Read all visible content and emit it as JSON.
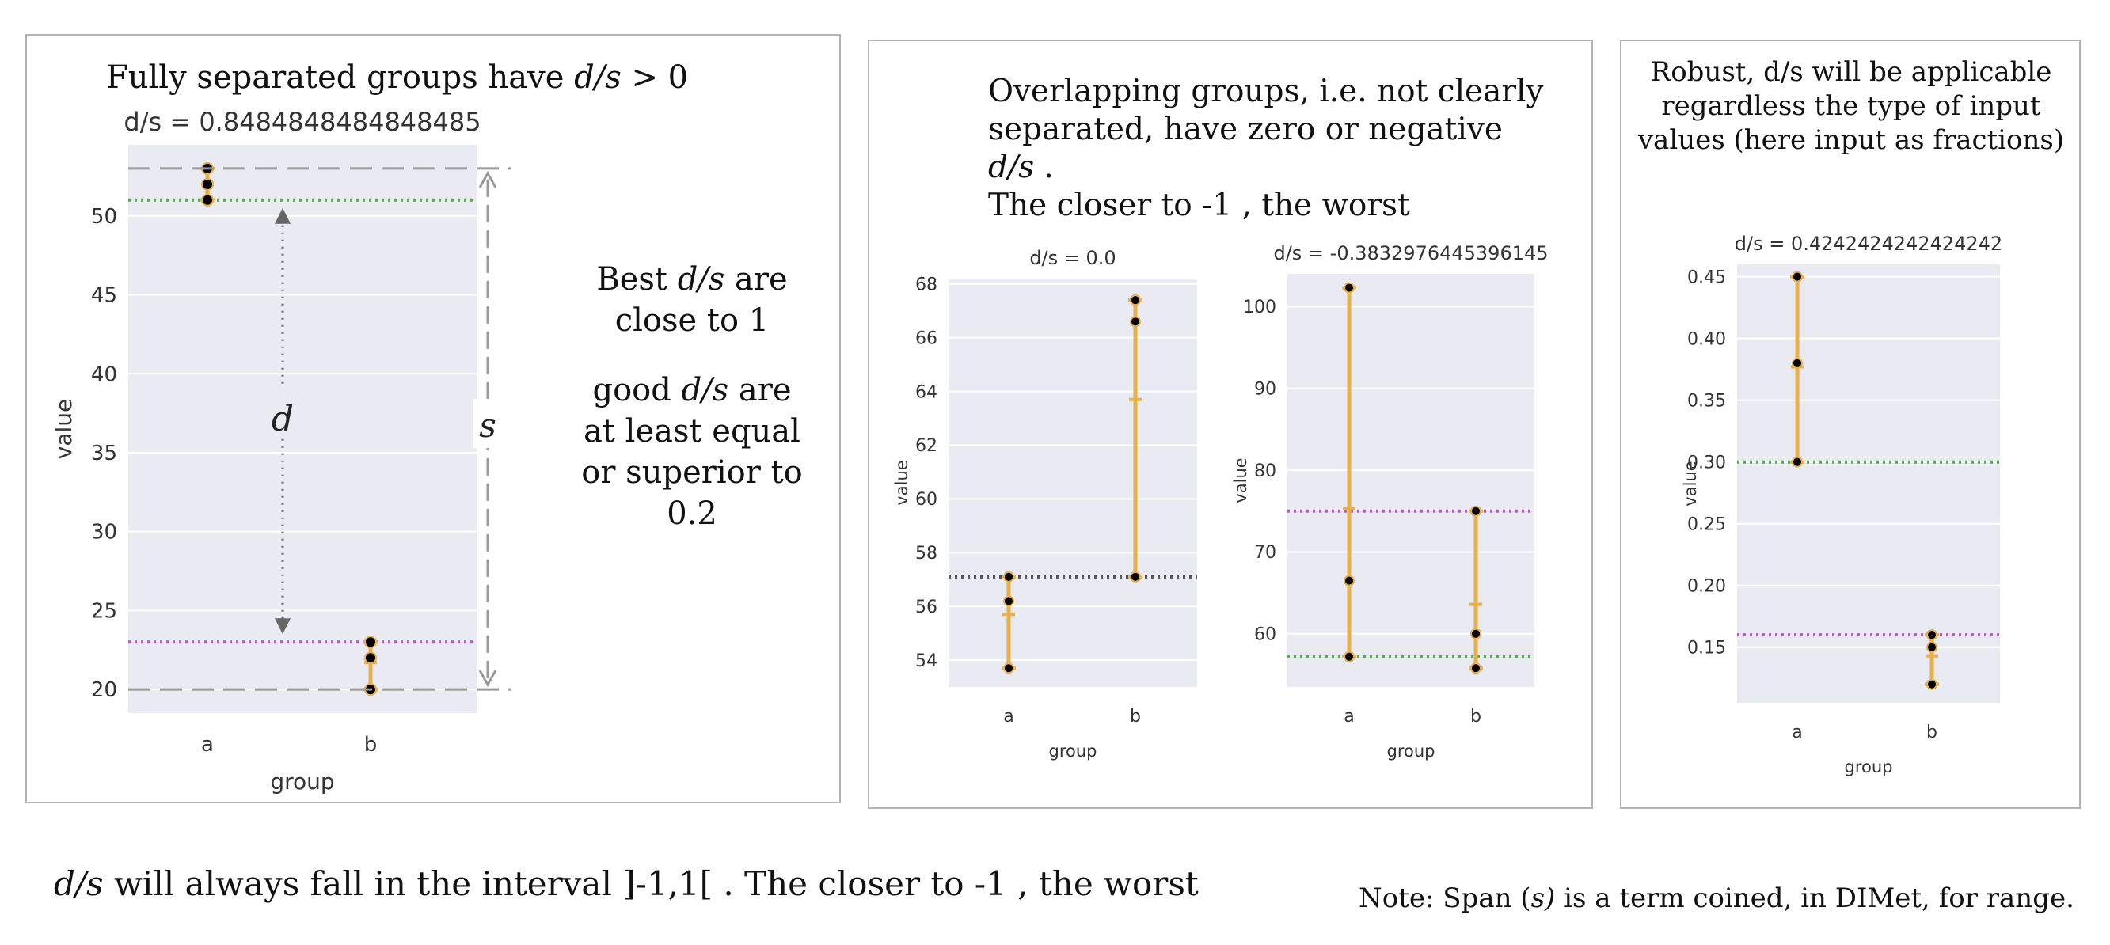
{
  "panel1": {
    "heading_prefix": "Fully separated groups have ",
    "heading_var": "d/s",
    "heading_suffix": " > 0",
    "note_line1_var": "Best ",
    "note_best_var": "d/s",
    "note_best_suffix": " are close  to 1",
    "note_good_prefix": "good ",
    "note_good_var": "d/s",
    "note_good_suffix": " are at least equal or superior to 0.2",
    "label_d": "d",
    "label_s": "s"
  },
  "panel2": {
    "heading_line1": "Overlapping groups, i.e. not clearly",
    "heading_line2_prefix": "separated, have zero or negative ",
    "heading_line2_var": "d/s",
    "heading_line2_suffix": " .",
    "heading_line3": "The closer to -1 , the worst"
  },
  "panel3": {
    "heading": "Robust,  d/s will be applicable regardless the type of input values  (here input as fractions)"
  },
  "bottom": {
    "left_var": "d/s",
    "left_text": " will always fall in the interval ]-1,1[ .   The closer to -1 , the worst",
    "right_prefix": "Note: Span (",
    "right_var": "s)",
    "right_suffix": " is a term coined, in DIMet, for range."
  },
  "colors": {
    "plot_bg": "#eaeaf2",
    "grid": "#ffffff",
    "errorbar": "#e8b04a",
    "point": "#000000",
    "green_line": "#5aa55a",
    "purple_line": "#b05cc0",
    "overlap_line": "#555555",
    "arrow": "#888888"
  },
  "chart_data": [
    {
      "type": "scatter",
      "title": "d/s = 0.8484848484848485",
      "xlabel": "group",
      "ylabel": "value",
      "categories": [
        "a",
        "b"
      ],
      "ylim": [
        18.5,
        54.5
      ],
      "yticks": [
        20,
        25,
        30,
        35,
        40,
        45,
        50
      ],
      "points": {
        "a": [
          53,
          52,
          51
        ],
        "b": [
          23,
          22,
          20
        ]
      },
      "errorbars": {
        "a": [
          51,
          53
        ],
        "b": [
          20,
          23
        ]
      },
      "means": {
        "a": 52,
        "b": 21.7
      },
      "hlines": [
        {
          "y": 51,
          "color": "green"
        },
        {
          "y": 23,
          "color": "purple"
        }
      ],
      "span_lines": [
        53,
        20
      ],
      "grid": true
    },
    {
      "type": "scatter",
      "title": "d/s = 0.0",
      "xlabel": "group",
      "ylabel": "value",
      "categories": [
        "a",
        "b"
      ],
      "ylim": [
        53.0,
        68.2
      ],
      "yticks": [
        54,
        56,
        58,
        60,
        62,
        64,
        66,
        68
      ],
      "points": {
        "a": [
          57.1,
          56.2,
          53.7
        ],
        "b": [
          67.4,
          66.6,
          57.1
        ]
      },
      "errorbars": {
        "a": [
          53.7,
          57.1
        ],
        "b": [
          57.1,
          67.4
        ]
      },
      "means": {
        "a": 55.7,
        "b": 63.7
      },
      "hlines": [
        {
          "y": 57.1,
          "color": "overlap"
        }
      ],
      "grid": true
    },
    {
      "type": "scatter",
      "title": "d/s = -0.3832976445396145",
      "xlabel": "group",
      "ylabel": "value",
      "categories": [
        "a",
        "b"
      ],
      "ylim": [
        53.5,
        104
      ],
      "yticks": [
        60,
        70,
        80,
        90,
        100
      ],
      "points": {
        "a": [
          102.3,
          66.5,
          57.2
        ],
        "b": [
          75.0,
          60.0,
          55.8
        ]
      },
      "errorbars": {
        "a": [
          57.2,
          102.3
        ],
        "b": [
          55.8,
          75.0
        ]
      },
      "means": {
        "a": 75.3,
        "b": 63.6
      },
      "hlines": [
        {
          "y": 75.0,
          "color": "purple"
        },
        {
          "y": 57.2,
          "color": "green"
        }
      ],
      "grid": true
    },
    {
      "type": "scatter",
      "title": "d/s = 0.4242424242424242",
      "xlabel": "group",
      "ylabel": "value",
      "categories": [
        "a",
        "b"
      ],
      "ylim": [
        0.105,
        0.46
      ],
      "yticks": [
        0.15,
        0.2,
        0.25,
        0.3,
        0.35,
        0.4,
        0.45
      ],
      "points": {
        "a": [
          0.45,
          0.38,
          0.3
        ],
        "b": [
          0.16,
          0.15,
          0.12
        ]
      },
      "errorbars": {
        "a": [
          0.3,
          0.45
        ],
        "b": [
          0.12,
          0.16
        ]
      },
      "means": {
        "a": 0.377,
        "b": 0.143
      },
      "hlines": [
        {
          "y": 0.3,
          "color": "green"
        },
        {
          "y": 0.16,
          "color": "purple"
        }
      ],
      "grid": true
    }
  ]
}
